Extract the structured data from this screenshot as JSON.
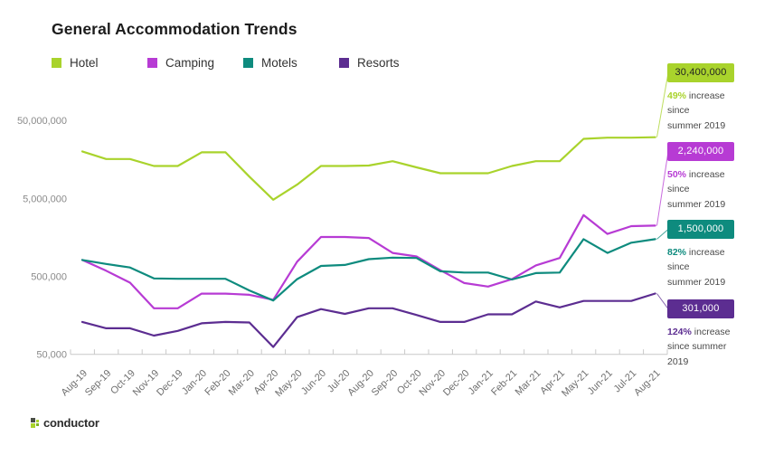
{
  "page": {
    "title": "General Accommodation Trends"
  },
  "legend": {
    "items": [
      {
        "label": "Hotel",
        "color": "#a9d32c"
      },
      {
        "label": "Camping",
        "color": "#b73bd4"
      },
      {
        "label": "Motels",
        "color": "#0e8b7e"
      },
      {
        "label": "Resorts",
        "color": "#5c2d91"
      }
    ]
  },
  "chart_data": {
    "type": "line",
    "title": "General Accommodation Trends",
    "x_categories": [
      "Aug-19",
      "Sep-19",
      "Oct-19",
      "Nov-19",
      "Dec-19",
      "Jan-20",
      "Feb-20",
      "Mar-20",
      "Apr-20",
      "May-20",
      "Jun-20",
      "Jul-20",
      "Aug-20",
      "Sep-20",
      "Oct-20",
      "Nov-20",
      "Dec-20",
      "Jan-21",
      "Feb-21",
      "Mar-21",
      "Apr-21",
      "May-21",
      "Jun-21",
      "Jul-21",
      "Aug-21"
    ],
    "y_axis": {
      "scale": "log",
      "range": [
        50000,
        50000000
      ],
      "ticks": [
        {
          "label": "50,000,000",
          "value": 50000000
        },
        {
          "label": "5,000,000",
          "value": 5000000
        },
        {
          "label": "500,000",
          "value": 500000
        },
        {
          "label": "50,000",
          "value": 50000
        }
      ]
    },
    "series": [
      {
        "name": "Hotel",
        "color": "#a9d32c",
        "values": [
          20000000,
          16000000,
          16000000,
          13000000,
          13000000,
          19500000,
          19500000,
          9500000,
          4800000,
          7500000,
          13000000,
          13000000,
          13200000,
          15000000,
          12500000,
          10500000,
          10500000,
          10500000,
          13000000,
          15000000,
          15000000,
          29000000,
          30000000,
          30000000,
          30400000
        ]
      },
      {
        "name": "Camping",
        "color": "#b73bd4",
        "values": [
          810000,
          590000,
          415000,
          195000,
          195000,
          300000,
          300000,
          290000,
          250000,
          770000,
          1600000,
          1600000,
          1550000,
          1000000,
          900000,
          600000,
          410000,
          370000,
          460000,
          690000,
          860000,
          3050000,
          1750000,
          2200000,
          2240000
        ]
      },
      {
        "name": "Motels",
        "color": "#0e8b7e",
        "values": [
          810000,
          720000,
          650000,
          470000,
          465000,
          465000,
          465000,
          330000,
          245000,
          460000,
          680000,
          700000,
          830000,
          870000,
          860000,
          580000,
          560000,
          560000,
          455000,
          550000,
          560000,
          1500000,
          1000000,
          1350000,
          1500000
        ]
      },
      {
        "name": "Resorts",
        "color": "#5c2d91",
        "values": [
          130000,
          108000,
          108000,
          87000,
          100000,
          125000,
          130000,
          128000,
          62000,
          150000,
          190000,
          165000,
          195000,
          195000,
          160000,
          130000,
          130000,
          163000,
          163000,
          238000,
          200000,
          242000,
          242000,
          242000,
          301000
        ]
      }
    ],
    "callouts": [
      {
        "series": "Hotel",
        "value_label": "30,400,000",
        "pct": "49%",
        "caption_rest": "increase since",
        "caption_line2": "summer 2019",
        "color": "#a9d32c",
        "value_text_color": "#222222"
      },
      {
        "series": "Camping",
        "value_label": "2,240,000",
        "pct": "50%",
        "caption_rest": "increase since",
        "caption_line2": "summer 2019",
        "color": "#b73bd4",
        "value_text_color": "#ffffff"
      },
      {
        "series": "Motels",
        "value_label": "1,500,000",
        "pct": "82%",
        "caption_rest": "increase since",
        "caption_line2": "summer 2019",
        "color": "#0e8b7e",
        "value_text_color": "#ffffff"
      },
      {
        "series": "Resorts",
        "value_label": "301,000",
        "pct": "124%",
        "caption_rest": "increase",
        "caption_line2": "since summer 2019",
        "color": "#5c2d91",
        "value_text_color": "#ffffff"
      }
    ]
  },
  "footer": {
    "logo_text": "conductor"
  }
}
